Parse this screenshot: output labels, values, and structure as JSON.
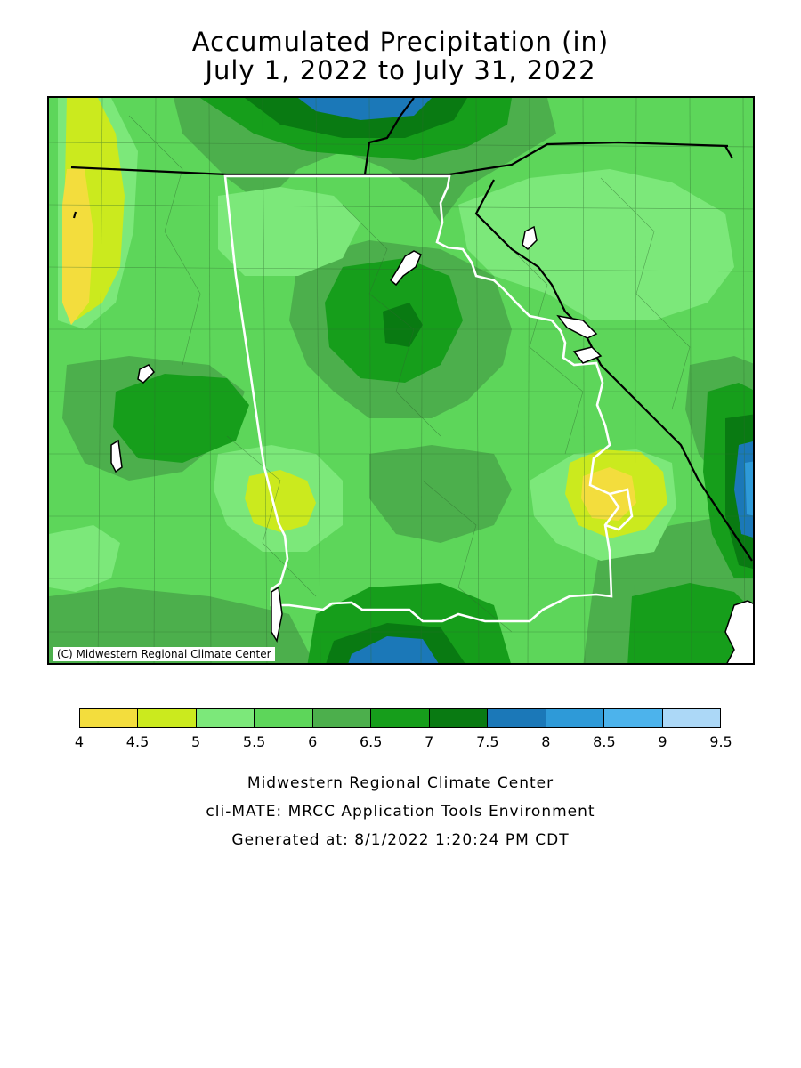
{
  "title": {
    "line1": "Accumulated Precipitation (in)",
    "line2": "July 1, 2022 to July 31, 2022"
  },
  "map": {
    "copyright": "(C) Midwestern Regional Climate Center",
    "units": "in"
  },
  "legend": {
    "colors": [
      "#f3dd3d",
      "#cbea1e",
      "#7ce87a",
      "#5dd65a",
      "#4caf4c",
      "#169e1b",
      "#097a12",
      "#1b78b8",
      "#2e9ad8",
      "#4cb3ec",
      "#acd8f7"
    ],
    "ticks": [
      "4",
      "4.5",
      "5",
      "5.5",
      "6",
      "6.5",
      "7",
      "7.5",
      "8",
      "8.5",
      "9",
      "9.5"
    ]
  },
  "footer": {
    "line1": "Midwestern Regional Climate Center",
    "line2": "cli-MATE: MRCC Application Tools Environment",
    "line3": "Generated at: 8/1/2022 1:20:24 PM CDT"
  }
}
